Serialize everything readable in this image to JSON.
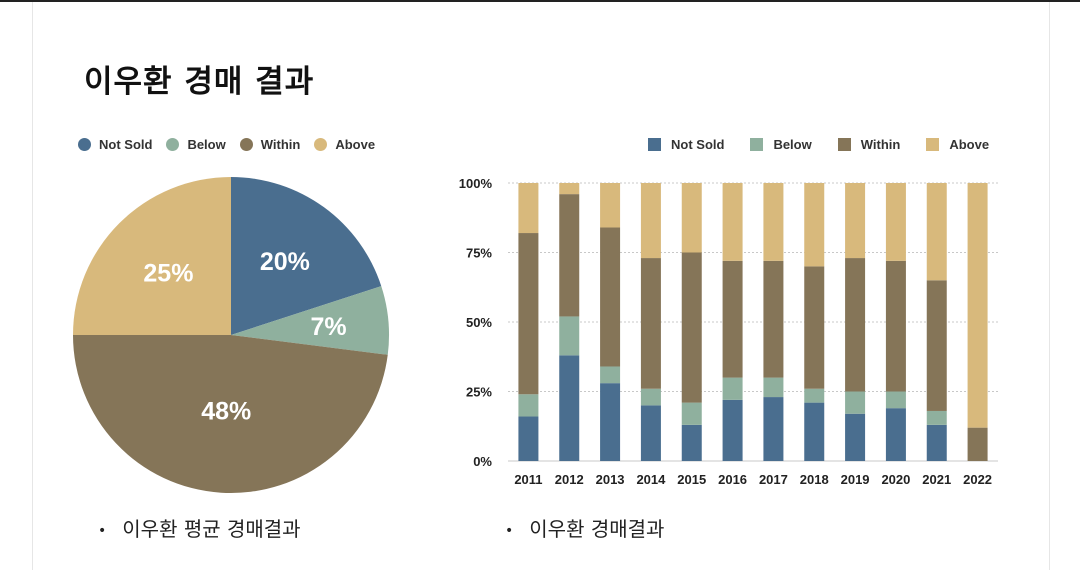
{
  "slide": {
    "title": "이우환 경매 결과"
  },
  "colors": {
    "not_sold": "#4a6e8f",
    "below": "#8fb09e",
    "within": "#857558",
    "above": "#d8b97c"
  },
  "pie_caption": "이우환 평균 경매결과",
  "bar_caption": "이우환 경매결과",
  "bullet": "•",
  "chart_data": [
    {
      "type": "pie",
      "legend": [
        "Not Sold",
        "Below",
        "Within",
        "Above"
      ],
      "values": [
        20,
        7,
        48,
        25
      ],
      "labels": [
        "20%",
        "7%",
        "48%",
        "25%"
      ]
    },
    {
      "type": "bar",
      "stacked": true,
      "categories": [
        "2011",
        "2012",
        "2013",
        "2014",
        "2015",
        "2016",
        "2017",
        "2018",
        "2019",
        "2020",
        "2021",
        "2022"
      ],
      "series": [
        {
          "name": "Not Sold",
          "values": [
            16,
            38,
            28,
            20,
            13,
            22,
            23,
            21,
            17,
            19,
            13,
            0
          ]
        },
        {
          "name": "Below",
          "values": [
            8,
            14,
            6,
            6,
            8,
            8,
            7,
            5,
            8,
            6,
            5,
            0
          ]
        },
        {
          "name": "Within",
          "values": [
            58,
            44,
            50,
            47,
            54,
            42,
            42,
            44,
            48,
            47,
            47,
            12
          ]
        },
        {
          "name": "Above",
          "values": [
            18,
            4,
            16,
            27,
            25,
            28,
            28,
            30,
            27,
            28,
            35,
            88
          ]
        }
      ],
      "yticks": [
        "0%",
        "25%",
        "50%",
        "75%",
        "100%"
      ],
      "ylim": [
        0,
        100
      ],
      "grid": true,
      "legend_position": "top-right"
    }
  ]
}
